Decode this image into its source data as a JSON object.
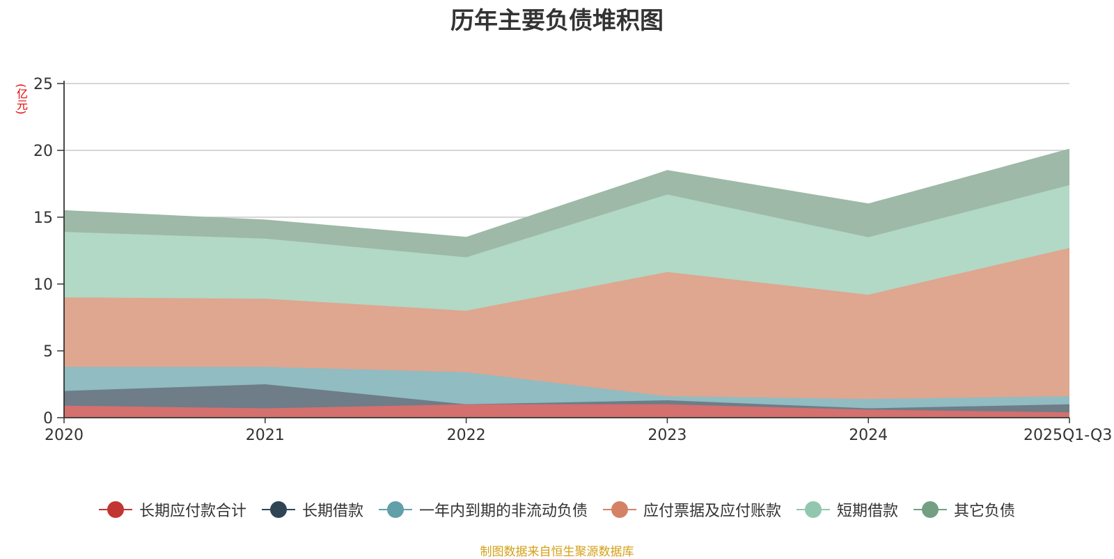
{
  "chart_data": {
    "type": "area",
    "stacked": true,
    "title": "历年主要负债堆积图",
    "unit_label": "(亿元)",
    "categories": [
      "2020",
      "2021",
      "2022",
      "2023",
      "2024",
      "2025Q1-Q3"
    ],
    "ylim": [
      0,
      25
    ],
    "yticks": [
      0,
      5,
      10,
      15,
      20,
      25
    ],
    "grid": true,
    "legend_position": "bottom",
    "series": [
      {
        "name": "长期应付款合计",
        "values": [
          0.9,
          0.7,
          1.0,
          1.0,
          0.6,
          0.4
        ],
        "color": "#c23531",
        "fill": "#d4706e"
      },
      {
        "name": "长期借款",
        "values": [
          1.1,
          1.8,
          0.0,
          0.3,
          0.1,
          0.6
        ],
        "color": "#2f4554",
        "fill": "#6e7d87"
      },
      {
        "name": "一年内到期的非流动负债",
        "values": [
          1.8,
          1.3,
          2.4,
          0.3,
          0.7,
          0.6
        ],
        "color": "#61a0a8",
        "fill": "#90bcc2"
      },
      {
        "name": "应付票据及应付账款",
        "values": [
          5.2,
          5.1,
          4.6,
          9.3,
          7.8,
          11.1
        ],
        "color": "#d48265",
        "fill": "#dfa690"
      },
      {
        "name": "短期借款",
        "values": [
          4.9,
          4.5,
          4.0,
          5.8,
          4.3,
          4.7
        ],
        "color": "#91c7ae",
        "fill": "#b2d8c6"
      },
      {
        "name": "其它负债",
        "values": [
          1.6,
          1.4,
          1.5,
          1.8,
          2.5,
          2.7
        ],
        "color": "#749f83",
        "fill": "#9eb9a7"
      }
    ],
    "source_note": "制图数据来自恒生聚源数据库"
  }
}
